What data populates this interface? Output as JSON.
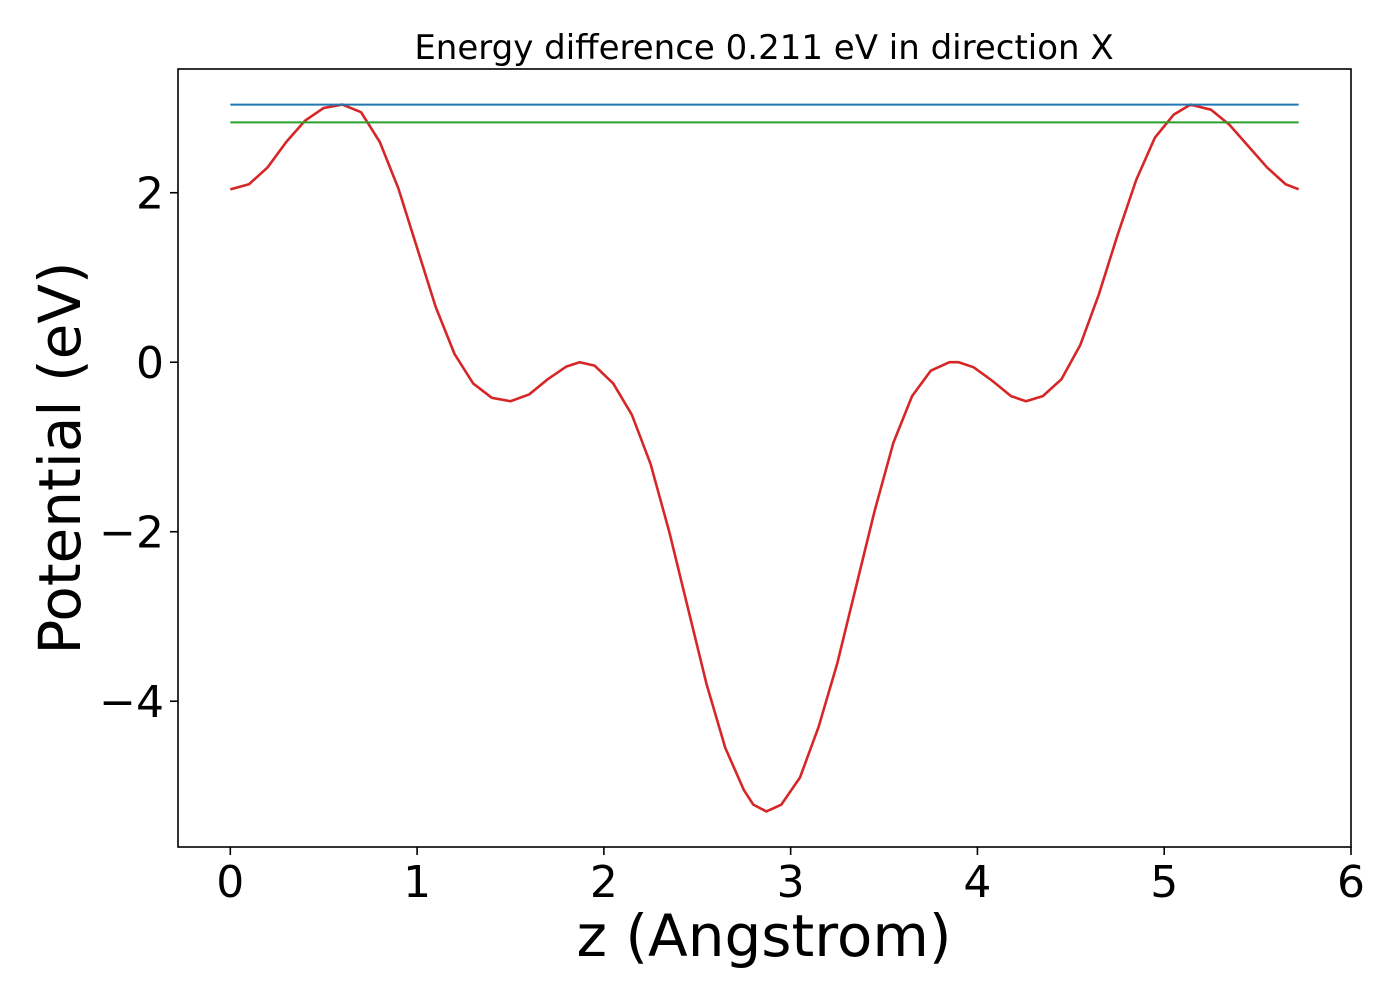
{
  "chart_data": {
    "type": "line",
    "title": "Energy difference 0.211 eV in direction X",
    "xlabel": "z (Angstrom)",
    "ylabel": "Potential (eV)",
    "xlim": [
      -0.28,
      6.0
    ],
    "ylim": [
      -5.72,
      3.46
    ],
    "xticks": [
      0,
      1,
      2,
      3,
      4,
      5,
      6
    ],
    "xtick_labels": [
      "0",
      "1",
      "2",
      "3",
      "4",
      "5",
      "6"
    ],
    "yticks": [
      2,
      0,
      -2,
      -4
    ],
    "ytick_labels": [
      "2",
      "0",
      "−2",
      "−4"
    ],
    "grid": false,
    "series": [
      {
        "color": "#d62728",
        "points": [
          [
            0.0,
            2.04
          ],
          [
            0.1,
            2.1
          ],
          [
            0.2,
            2.3
          ],
          [
            0.3,
            2.6
          ],
          [
            0.4,
            2.85
          ],
          [
            0.5,
            3.0
          ],
          [
            0.6,
            3.04
          ],
          [
            0.7,
            2.95
          ],
          [
            0.8,
            2.6
          ],
          [
            0.9,
            2.05
          ],
          [
            1.0,
            1.35
          ],
          [
            1.1,
            0.65
          ],
          [
            1.2,
            0.1
          ],
          [
            1.3,
            -0.25
          ],
          [
            1.4,
            -0.42
          ],
          [
            1.5,
            -0.46
          ],
          [
            1.6,
            -0.38
          ],
          [
            1.7,
            -0.2
          ],
          [
            1.8,
            -0.05
          ],
          [
            1.87,
            0.0
          ],
          [
            1.95,
            -0.04
          ],
          [
            2.05,
            -0.25
          ],
          [
            2.15,
            -0.62
          ],
          [
            2.25,
            -1.2
          ],
          [
            2.35,
            -2.0
          ],
          [
            2.45,
            -2.9
          ],
          [
            2.55,
            -3.8
          ],
          [
            2.65,
            -4.55
          ],
          [
            2.75,
            -5.05
          ],
          [
            2.8,
            -5.22
          ],
          [
            2.87,
            -5.3
          ],
          [
            2.95,
            -5.22
          ],
          [
            3.05,
            -4.9
          ],
          [
            3.15,
            -4.3
          ],
          [
            3.25,
            -3.55
          ],
          [
            3.35,
            -2.65
          ],
          [
            3.45,
            -1.75
          ],
          [
            3.55,
            -0.95
          ],
          [
            3.65,
            -0.4
          ],
          [
            3.75,
            -0.1
          ],
          [
            3.85,
            0.0
          ],
          [
            3.9,
            0.0
          ],
          [
            3.98,
            -0.06
          ],
          [
            4.08,
            -0.22
          ],
          [
            4.18,
            -0.4
          ],
          [
            4.26,
            -0.46
          ],
          [
            4.35,
            -0.4
          ],
          [
            4.45,
            -0.2
          ],
          [
            4.55,
            0.2
          ],
          [
            4.65,
            0.8
          ],
          [
            4.75,
            1.5
          ],
          [
            4.85,
            2.15
          ],
          [
            4.95,
            2.65
          ],
          [
            5.05,
            2.92
          ],
          [
            5.14,
            3.04
          ],
          [
            5.25,
            2.98
          ],
          [
            5.35,
            2.8
          ],
          [
            5.45,
            2.55
          ],
          [
            5.55,
            2.3
          ],
          [
            5.65,
            2.1
          ],
          [
            5.72,
            2.04
          ]
        ]
      },
      {
        "color": "#1f77b4",
        "points": [
          [
            0.0,
            3.04
          ],
          [
            5.72,
            3.04
          ]
        ]
      },
      {
        "color": "#2ca02c",
        "points": [
          [
            0.0,
            2.83
          ],
          [
            5.72,
            2.83
          ]
        ]
      }
    ]
  }
}
